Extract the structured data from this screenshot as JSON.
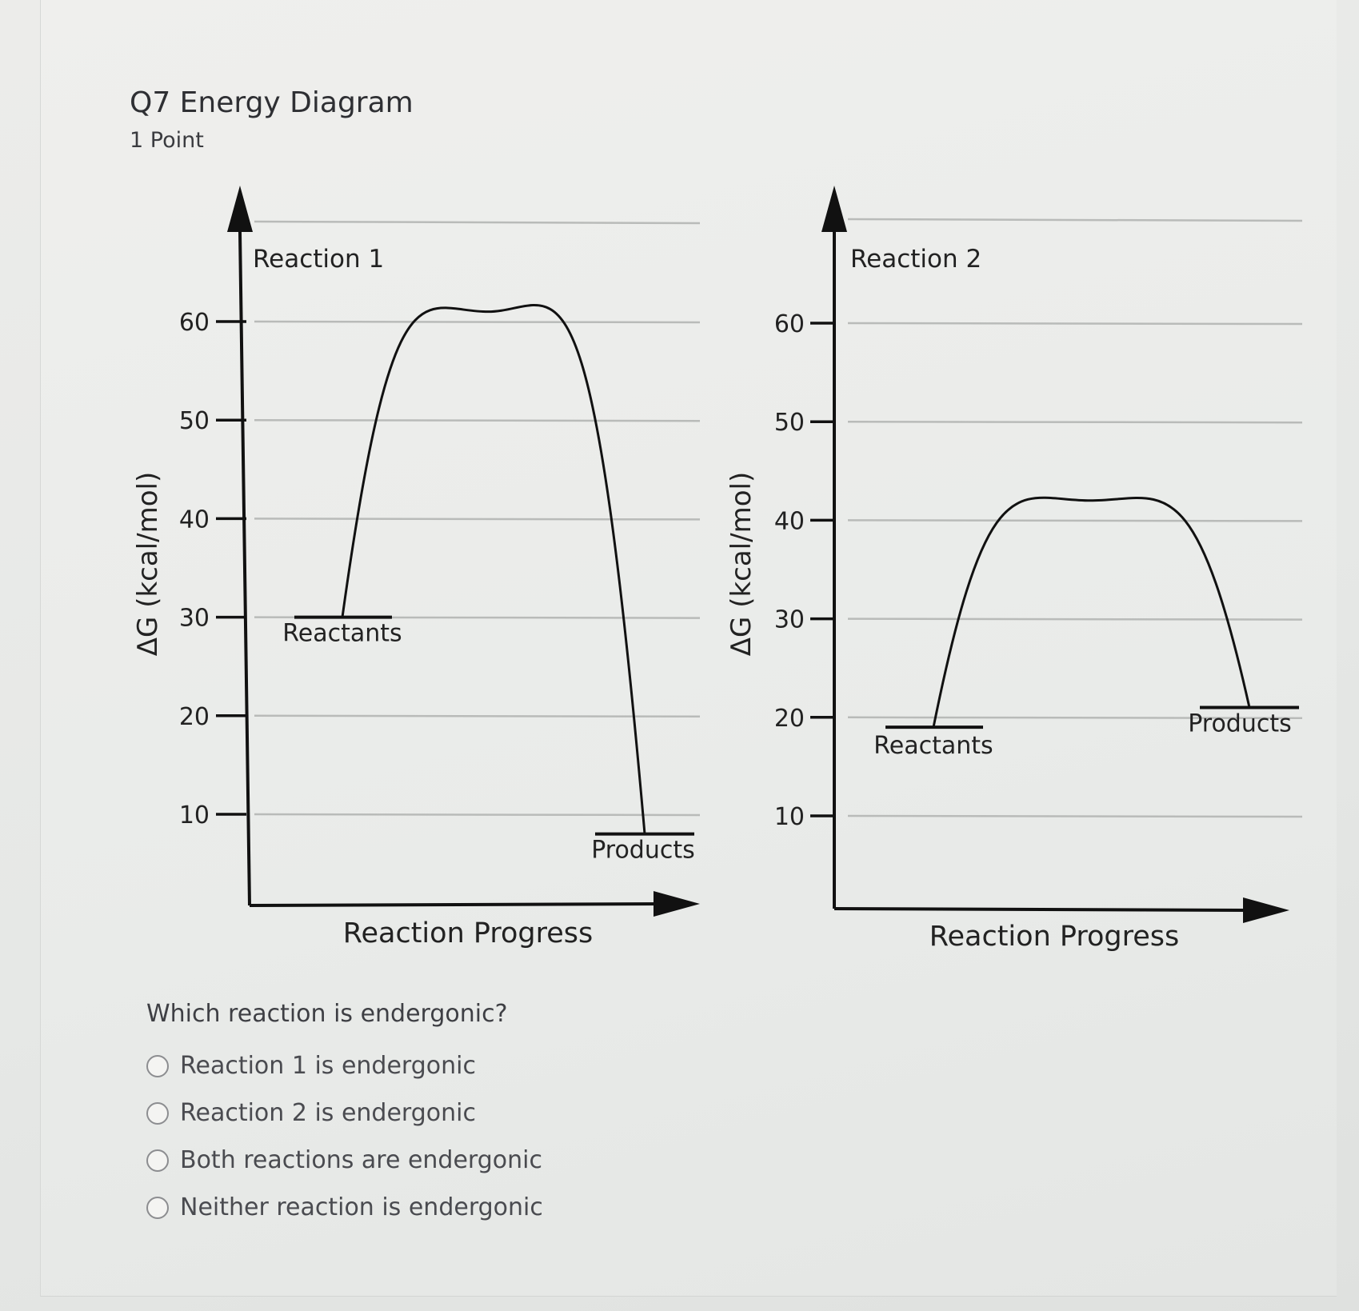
{
  "question": {
    "title": "Q7 Energy Diagram",
    "points": "1 Point",
    "prompt": "Which reaction is endergonic?",
    "options": [
      "Reaction 1 is endergonic",
      "Reaction 2 is endergonic",
      "Both reactions are endergonic",
      "Neither reaction is endergonic"
    ]
  },
  "chart_data": [
    {
      "type": "line",
      "title": "Reaction 1",
      "xlabel": "Reaction Progress",
      "ylabel": "ΔG (kcal/mol)",
      "yticks": [
        10,
        20,
        30,
        40,
        50,
        60
      ],
      "ylim": [
        0,
        70
      ],
      "grid": true,
      "series": [
        {
          "values": [
            30,
            61,
            8
          ]
        }
      ],
      "levels": {
        "reactants": {
          "label": "Reactants",
          "value": 30
        },
        "products": {
          "label": "Products",
          "value": 8
        }
      }
    },
    {
      "type": "line",
      "title": "Reaction 2",
      "xlabel": "Reaction Progress",
      "ylabel": "ΔG (kcal/mol)",
      "yticks": [
        10,
        20,
        30,
        40,
        50,
        60
      ],
      "ylim": [
        0,
        70
      ],
      "grid": true,
      "series": [
        {
          "values": [
            19,
            42,
            21
          ]
        }
      ],
      "levels": {
        "reactants": {
          "label": "Reactants",
          "value": 19
        },
        "products": {
          "label": "Products",
          "value": 21
        }
      }
    }
  ]
}
